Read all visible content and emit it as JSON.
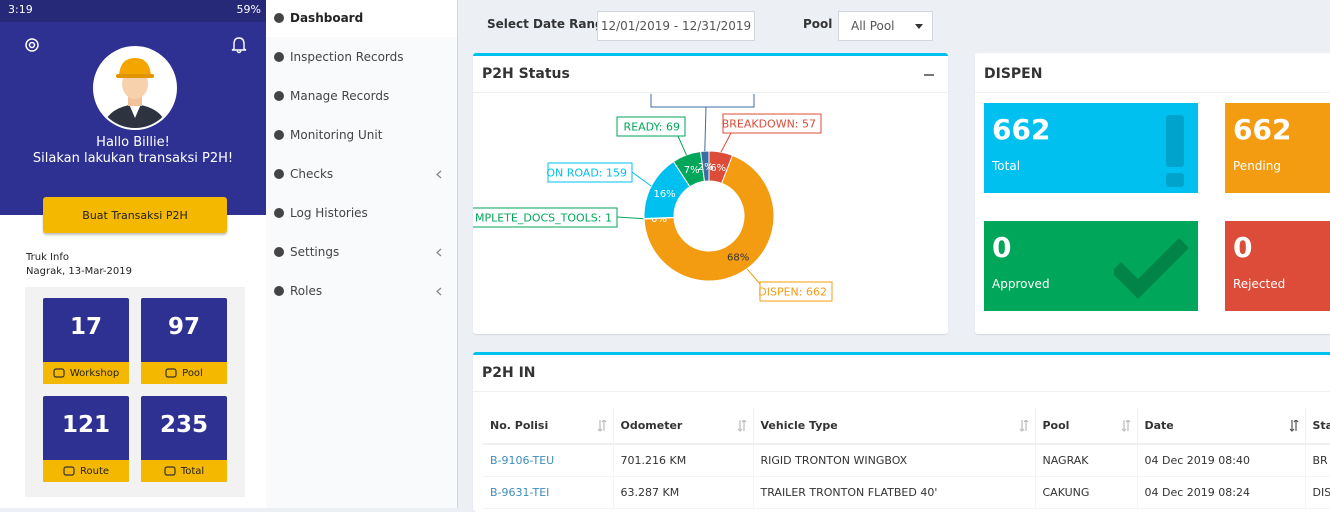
{
  "phone": {
    "status_time": "3:19",
    "battery": "59%",
    "greeting": "Hallo Billie!",
    "prompt": "Silakan lakukan transaksi P2H!",
    "button": "Buat Transaksi P2H",
    "info_title": "Truk Info",
    "info_subtitle": "Nagrak, 13-Mar-2019",
    "tiles": [
      {
        "value": 17,
        "label": "Workshop"
      },
      {
        "value": 97,
        "label": "Pool"
      },
      {
        "value": 121,
        "label": "Route"
      },
      {
        "value": 235,
        "label": "Total"
      }
    ]
  },
  "sidebar": {
    "items": [
      {
        "label": "Dashboard",
        "active": true,
        "submenu": false
      },
      {
        "label": "Inspection Records",
        "active": false,
        "submenu": false
      },
      {
        "label": "Manage Records",
        "active": false,
        "submenu": false
      },
      {
        "label": "Monitoring Unit",
        "active": false,
        "submenu": false
      },
      {
        "label": "Checks",
        "active": false,
        "submenu": true
      },
      {
        "label": "Log Histories",
        "active": false,
        "submenu": false
      },
      {
        "label": "Settings",
        "active": false,
        "submenu": true
      },
      {
        "label": "Roles",
        "active": false,
        "submenu": true
      }
    ]
  },
  "filters": {
    "date_label": "Select Date Range",
    "date_value": "12/01/2019 - 12/31/2019",
    "pool_label": "Pool",
    "pool_value": "All Pool"
  },
  "chart_data": {
    "type": "donut",
    "title": "P2H Status",
    "categories": [
      "BREAKDOWN: 57",
      "DISPEN: 662",
      "MPLETE_DOCS_TOOLS: 1",
      "ON ROAD: 159",
      "READY: 69",
      null
    ],
    "values": [
      57,
      662,
      1,
      159,
      69,
      20
    ],
    "percent_labels": [
      "6%",
      "68%",
      "0%",
      "16%",
      "7%",
      "2%"
    ],
    "colors": [
      "#dd4b39",
      "#f39c12",
      "#00a65a",
      "#00c0ef",
      "#00a65a",
      "#3c6e9f"
    ]
  },
  "dispen": {
    "title": "DISPEN",
    "tiles": [
      {
        "value": 662,
        "label": "Total",
        "color": "#00c0ef"
      },
      {
        "value": 662,
        "label": "Pending",
        "color": "#f39c12"
      },
      {
        "value": 0,
        "label": "Approved",
        "color": "#00a65a"
      },
      {
        "value": 0,
        "label": "Rejected",
        "color": "#dd4b39"
      }
    ]
  },
  "p2h_in": {
    "title": "P2H IN",
    "columns": [
      "No. Polisi",
      "Odometer",
      "Vehicle Type",
      "Pool",
      "Date",
      "Sta"
    ],
    "rows": [
      [
        "B-9106-TEU",
        "701.216 KM",
        "RIGID TRONTON WINGBOX",
        "NAGRAK",
        "04 Dec 2019 08:40",
        "BR"
      ],
      [
        "B-9631-TEI",
        "63.287 KM",
        "TRAILER TRONTON FLATBED 40'",
        "CAKUNG",
        "04 Dec 2019 08:24",
        "DIS"
      ]
    ]
  }
}
